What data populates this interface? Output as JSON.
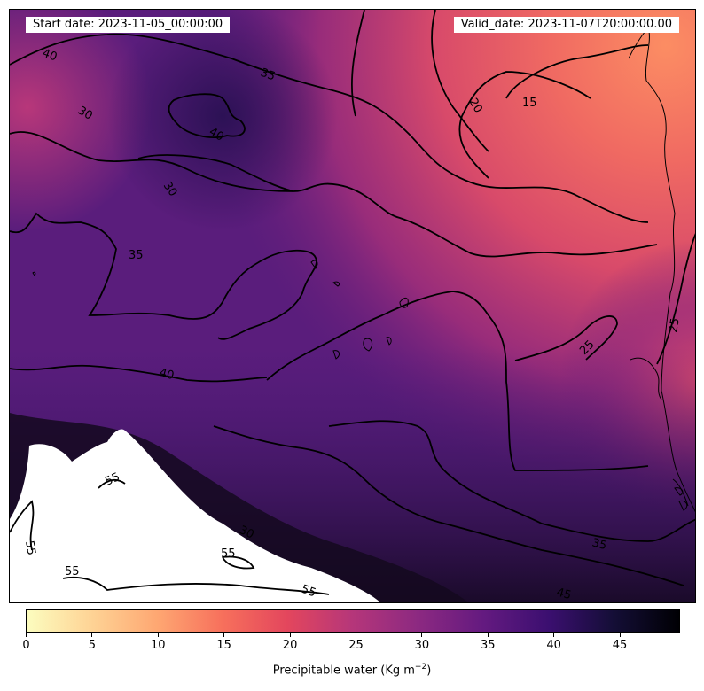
{
  "header": {
    "start_date": "Start date: 2023-11-05_00:00:00",
    "valid_date": "Valid_date: 2023-11-07T20:00:00.00"
  },
  "contour_labels": [
    "40",
    "35",
    "30",
    "40",
    "20",
    "15",
    "30",
    "35",
    "40",
    "25",
    "25",
    "55",
    "55",
    "55",
    "30",
    "55",
    "55",
    "35",
    "45"
  ],
  "colorbar": {
    "label": "Precipitable water (Kg m",
    "label_sup": "−2",
    "label_end": ")",
    "ticks": [
      "0",
      "5",
      "10",
      "15",
      "20",
      "25",
      "30",
      "35",
      "40",
      "45"
    ],
    "range": [
      0,
      49.6
    ],
    "colormap": "magma_r"
  },
  "colors": {
    "coastline": "#000000",
    "contour": "#000000",
    "over_max": "#ffffff"
  }
}
